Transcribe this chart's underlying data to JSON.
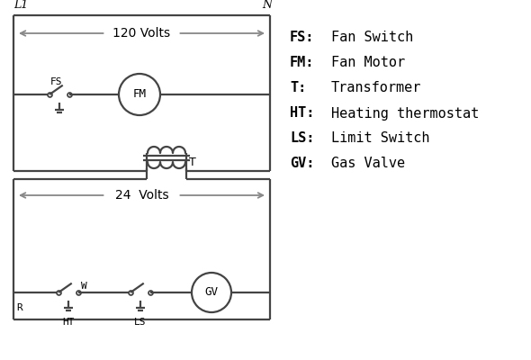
{
  "bg_color": "#ffffff",
  "line_color": "#444444",
  "arrow_color": "#888888",
  "text_color": "#000000",
  "legend_items": [
    [
      "FS:",
      "Fan Switch"
    ],
    [
      "FM:",
      "Fan Motor"
    ],
    [
      "T:",
      "Transformer"
    ],
    [
      "HT:",
      "Heating thermostat"
    ],
    [
      "LS:",
      "Limit Switch"
    ],
    [
      "GV:",
      "Gas Valve"
    ]
  ],
  "label_L1": "L1",
  "label_N": "N",
  "label_120V": "120 Volts",
  "label_24V": "24  Volts",
  "label_T": "T",
  "label_FS": "FS",
  "label_FM": "FM",
  "label_GV": "GV",
  "label_R": "R",
  "label_W": "W",
  "label_HT": "HT",
  "label_LS": "LS"
}
